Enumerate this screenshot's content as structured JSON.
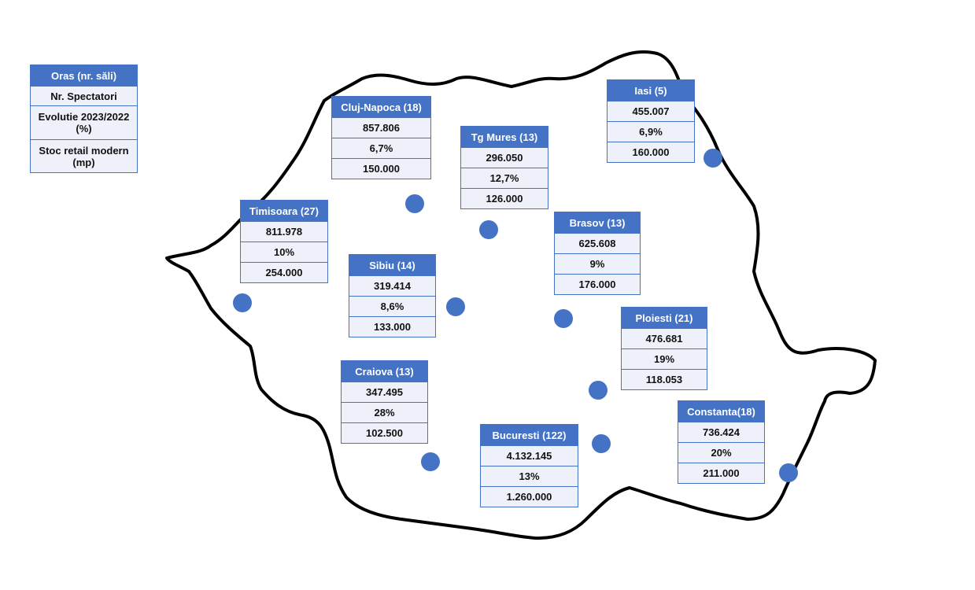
{
  "legend": {
    "title": "Oras (nr. săli)",
    "rows": [
      "Nr. Spectatori",
      "Evolutie 2023/2022 (%)",
      "Stoc retail modern (mp)"
    ]
  },
  "cities": [
    {
      "name": "Cluj-Napoca (18)",
      "rows": [
        "857.806",
        "6,7%",
        "150.000"
      ]
    },
    {
      "name": "Tg Mures (13)",
      "rows": [
        "296.050",
        "12,7%",
        "126.000"
      ]
    },
    {
      "name": "Iasi (5)",
      "rows": [
        "455.007",
        "6,9%",
        "160.000"
      ]
    },
    {
      "name": "Timisoara (27)",
      "rows": [
        "811.978",
        "10%",
        "254.000"
      ]
    },
    {
      "name": "Sibiu (14)",
      "rows": [
        "319.414",
        "8,6%",
        "133.000"
      ]
    },
    {
      "name": "Brasov (13)",
      "rows": [
        "625.608",
        "9%",
        "176.000"
      ]
    },
    {
      "name": "Ploiesti (21)",
      "rows": [
        "476.681",
        "19%",
        "118.053"
      ]
    },
    {
      "name": "Craiova (13)",
      "rows": [
        "347.495",
        "28%",
        "102.500"
      ]
    },
    {
      "name": "Bucuresti (122)",
      "rows": [
        "4.132.145",
        "13%",
        "1.260.000"
      ]
    },
    {
      "name": "Constanta(18)",
      "rows": [
        "736.424",
        "20%",
        "211.000"
      ]
    }
  ]
}
